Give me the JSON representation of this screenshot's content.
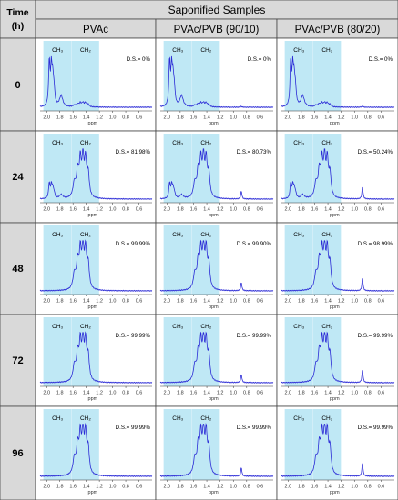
{
  "header": {
    "time_label_line1": "Time",
    "time_label_line2": "(h)",
    "group_title": "Saponified Samples"
  },
  "columns": [
    "PVAc",
    "PVAc/PVB (90/10)",
    "PVAc/PVB (80/20)"
  ],
  "colors": {
    "header_fill": "#d9d9d9",
    "row_label_fill": "#d9d9d9",
    "region_fill": "#bfe8f5",
    "spectrum_line": "#2b2bd6",
    "border": "#444444"
  },
  "chart_data": {
    "type": "line",
    "x_axis": {
      "label": "ppm",
      "reversed": true,
      "xlim": [
        2.1,
        0.4
      ],
      "ticks": [
        "2.0",
        "1.8",
        "1.6",
        "1.4",
        "1.2",
        "1.0",
        "0.8",
        "0.6"
      ]
    },
    "region_labels": [
      "CH3",
      "CH2"
    ],
    "regions": [
      {
        "name": "CH3",
        "from": 2.05,
        "to": 1.62
      },
      {
        "name": "CH2",
        "from": 1.62,
        "to": 1.2
      }
    ],
    "rows": [
      {
        "time": "0",
        "ds": [
          "D.S.= 0%",
          "D.S.= 0%",
          "D.S.= 0%"
        ]
      },
      {
        "time": "24",
        "ds": [
          "D.S.= 81.98%",
          "D.S.= 80.73%",
          "D.S.= 50.24%"
        ]
      },
      {
        "time": "48",
        "ds": [
          "D.S.= 99.99%",
          "D.S.= 99.90%",
          "D.S.= 98.99%"
        ]
      },
      {
        "time": "72",
        "ds": [
          "D.S.= 99.99%",
          "D.S.= 99.99%",
          "D.S.= 99.99%"
        ]
      },
      {
        "time": "96",
        "ds": [
          "D.S.= 99.99%",
          "D.S.= 99.99%",
          "D.S.= 99.99%"
        ]
      }
    ],
    "peak_profiles": {
      "acetate": [
        {
          "ppm": 1.96,
          "height": 1.0,
          "width": 0.012
        },
        {
          "ppm": 1.93,
          "height": 0.8,
          "width": 0.012
        },
        {
          "ppm": 1.91,
          "height": 0.55,
          "width": 0.012
        },
        {
          "ppm": 1.89,
          "height": 0.4,
          "width": 0.015
        },
        {
          "ppm": 1.78,
          "height": 0.25,
          "width": 0.03
        }
      ],
      "backbone": [
        {
          "ppm": 1.58,
          "height": 0.35,
          "width": 0.025
        },
        {
          "ppm": 1.53,
          "height": 0.6,
          "width": 0.02
        },
        {
          "ppm": 1.49,
          "height": 0.82,
          "width": 0.018
        },
        {
          "ppm": 1.45,
          "height": 0.88,
          "width": 0.018
        },
        {
          "ppm": 1.41,
          "height": 0.85,
          "width": 0.018
        },
        {
          "ppm": 1.37,
          "height": 0.55,
          "width": 0.02
        }
      ],
      "pvb_methyl": {
        "ppm": 0.88,
        "height": 0.35,
        "width": 0.01
      }
    },
    "row_weights": [
      {
        "acetate": 1.0,
        "backbone": 0.1
      },
      {
        "acetate": 0.35,
        "backbone": 0.95
      },
      {
        "acetate": 0.0,
        "backbone": 1.0
      },
      {
        "acetate": 0.0,
        "backbone": 1.0
      },
      {
        "acetate": 0.0,
        "backbone": 1.0
      }
    ],
    "column_pvb": [
      0.0,
      0.55,
      0.85
    ]
  }
}
